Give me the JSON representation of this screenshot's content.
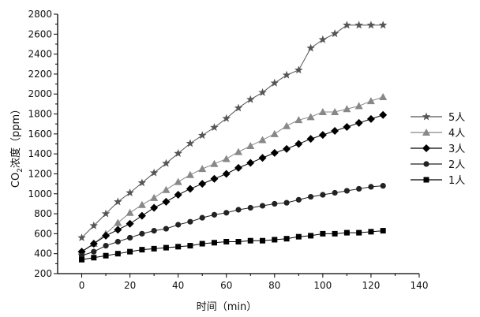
{
  "chart_data": {
    "type": "line",
    "title": "",
    "xlabel": "时间（min）",
    "ylabel_parts": {
      "prefix": "CO",
      "subscript": "2",
      "suffix": "浓度（ppm）"
    },
    "xlim": [
      -10,
      140
    ],
    "ylim": [
      200,
      2800
    ],
    "xticks": [
      0,
      20,
      40,
      60,
      80,
      100,
      120,
      140
    ],
    "yticks": [
      200,
      400,
      600,
      800,
      1000,
      1200,
      1400,
      1600,
      1800,
      2000,
      2200,
      2400,
      2600,
      2800
    ],
    "grid": false,
    "legend_position": "right",
    "series": [
      {
        "name": "5人",
        "marker": "star",
        "color": "#555555",
        "x": [
          0,
          5,
          10,
          15,
          20,
          25,
          30,
          35,
          40,
          45,
          50,
          55,
          60,
          65,
          70,
          75,
          80,
          85,
          90,
          95,
          100,
          105,
          110,
          115,
          120,
          125
        ],
        "y": [
          560,
          680,
          800,
          920,
          1010,
          1110,
          1210,
          1305,
          1405,
          1505,
          1585,
          1665,
          1755,
          1860,
          1945,
          2015,
          2110,
          2190,
          2240,
          2460,
          2545,
          2605,
          2690,
          2690,
          2690,
          2690
        ]
      },
      {
        "name": "4人",
        "marker": "triangle",
        "color": "#888888",
        "x": [
          0,
          5,
          10,
          15,
          20,
          25,
          30,
          35,
          40,
          45,
          50,
          55,
          60,
          65,
          70,
          75,
          80,
          85,
          90,
          95,
          100,
          105,
          110,
          115,
          120,
          125
        ],
        "y": [
          420,
          500,
          600,
          710,
          810,
          890,
          960,
          1040,
          1120,
          1190,
          1250,
          1300,
          1350,
          1420,
          1480,
          1540,
          1600,
          1680,
          1740,
          1770,
          1820,
          1820,
          1850,
          1880,
          1930,
          1970
        ]
      },
      {
        "name": "3人",
        "marker": "diamond",
        "color": "#000000",
        "x": [
          0,
          5,
          10,
          15,
          20,
          25,
          30,
          35,
          40,
          45,
          50,
          55,
          60,
          65,
          70,
          75,
          80,
          85,
          90,
          95,
          100,
          105,
          110,
          115,
          120,
          125
        ],
        "y": [
          420,
          500,
          580,
          640,
          700,
          780,
          860,
          920,
          990,
          1050,
          1100,
          1150,
          1200,
          1260,
          1310,
          1360,
          1410,
          1450,
          1500,
          1550,
          1590,
          1630,
          1670,
          1710,
          1750,
          1790
        ]
      },
      {
        "name": "2人",
        "marker": "circle",
        "color": "#222222",
        "x": [
          0,
          5,
          10,
          15,
          20,
          25,
          30,
          35,
          40,
          45,
          50,
          55,
          60,
          65,
          70,
          75,
          80,
          85,
          90,
          95,
          100,
          105,
          110,
          115,
          120,
          125
        ],
        "y": [
          380,
          420,
          480,
          520,
          560,
          600,
          630,
          650,
          690,
          720,
          760,
          790,
          810,
          840,
          860,
          880,
          900,
          910,
          940,
          970,
          990,
          1010,
          1030,
          1050,
          1070,
          1080
        ]
      },
      {
        "name": "1人",
        "marker": "square",
        "color": "#000000",
        "x": [
          0,
          5,
          10,
          15,
          20,
          25,
          30,
          35,
          40,
          45,
          50,
          55,
          60,
          65,
          70,
          75,
          80,
          85,
          90,
          95,
          100,
          105,
          110,
          115,
          120,
          125
        ],
        "y": [
          340,
          360,
          380,
          400,
          420,
          440,
          450,
          460,
          470,
          480,
          500,
          510,
          520,
          520,
          530,
          530,
          540,
          550,
          570,
          580,
          600,
          600,
          610,
          610,
          620,
          630
        ]
      }
    ],
    "legend_order": [
      "5人",
      "4人",
      "3人",
      "2人",
      "1人"
    ]
  }
}
